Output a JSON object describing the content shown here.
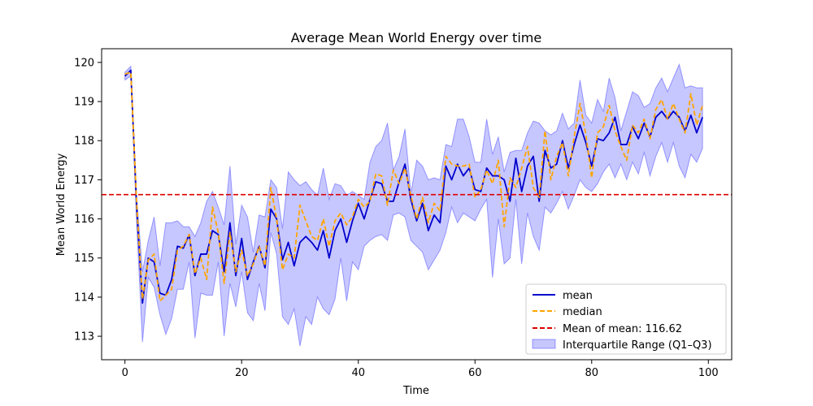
{
  "chart_data": {
    "type": "line",
    "title": "Average Mean World Energy over time",
    "xlabel": "Time",
    "ylabel": "Mean World Energy",
    "xlim": [
      -4,
      104
    ],
    "ylim": [
      112.4,
      120.35
    ],
    "xticks": [
      0,
      20,
      40,
      60,
      80,
      100
    ],
    "yticks": [
      113,
      114,
      115,
      116,
      117,
      118,
      119,
      120
    ],
    "grid": false,
    "legend_position": "lower-right",
    "x": [
      0,
      1,
      2,
      3,
      4,
      5,
      6,
      7,
      8,
      9,
      10,
      11,
      12,
      13,
      14,
      15,
      16,
      17,
      18,
      19,
      20,
      21,
      22,
      23,
      24,
      25,
      26,
      27,
      28,
      29,
      30,
      31,
      32,
      33,
      34,
      35,
      36,
      37,
      38,
      39,
      40,
      41,
      42,
      43,
      44,
      45,
      46,
      47,
      48,
      49,
      50,
      51,
      52,
      53,
      54,
      55,
      56,
      57,
      58,
      59,
      60,
      61,
      62,
      63,
      64,
      65,
      66,
      67,
      68,
      69,
      70,
      71,
      72,
      73,
      74,
      75,
      76,
      77,
      78,
      79,
      80,
      81,
      82,
      83,
      84,
      85,
      86,
      87,
      88,
      89,
      90,
      91,
      92,
      93,
      94,
      95,
      96,
      97,
      98,
      99
    ],
    "series": [
      {
        "name": "mean",
        "color": "#0000cc",
        "style": "solid",
        "values": [
          119.65,
          119.8,
          116.3,
          113.85,
          115.0,
          114.9,
          114.1,
          114.05,
          114.45,
          115.3,
          115.25,
          115.6,
          114.55,
          115.1,
          115.1,
          115.7,
          115.6,
          114.65,
          115.9,
          114.55,
          115.5,
          114.45,
          114.9,
          115.3,
          114.75,
          116.25,
          116.0,
          114.95,
          115.4,
          114.8,
          115.4,
          115.55,
          115.4,
          115.2,
          115.7,
          115.0,
          115.7,
          116.0,
          115.4,
          115.95,
          116.4,
          116.0,
          116.5,
          116.95,
          116.9,
          116.45,
          116.45,
          116.95,
          117.4,
          116.5,
          115.95,
          116.4,
          115.7,
          116.1,
          115.9,
          117.35,
          117.0,
          117.4,
          117.1,
          117.3,
          116.75,
          116.7,
          117.3,
          117.1,
          117.1,
          117.0,
          116.45,
          117.55,
          116.7,
          117.35,
          117.6,
          116.45,
          117.75,
          117.3,
          117.4,
          118.0,
          117.3,
          117.9,
          118.4,
          117.95,
          117.35,
          118.05,
          118.0,
          118.2,
          118.6,
          117.9,
          117.9,
          118.35,
          118.05,
          118.45,
          118.1,
          118.6,
          118.75,
          118.55,
          118.75,
          118.6,
          118.25,
          118.65,
          118.2,
          118.6
        ]
      },
      {
        "name": "median",
        "color": "#ffa500",
        "style": "dashed",
        "values": [
          119.7,
          119.75,
          116.4,
          113.95,
          114.95,
          115.1,
          113.9,
          114.05,
          114.2,
          115.2,
          115.3,
          115.6,
          114.6,
          115.0,
          114.45,
          116.3,
          115.65,
          114.35,
          115.65,
          114.65,
          115.2,
          114.55,
          114.85,
          115.3,
          114.8,
          116.8,
          116.0,
          114.7,
          115.1,
          115.0,
          116.35,
          115.95,
          115.55,
          115.45,
          116.0,
          115.3,
          115.95,
          116.15,
          115.85,
          116.05,
          116.5,
          116.3,
          116.45,
          117.15,
          117.1,
          116.35,
          117.25,
          116.9,
          117.3,
          116.6,
          116.0,
          116.55,
          115.9,
          116.4,
          116.2,
          117.6,
          117.4,
          117.35,
          117.35,
          117.4,
          116.55,
          116.75,
          117.25,
          116.9,
          117.5,
          115.8,
          117.05,
          116.8,
          117.3,
          117.85,
          116.8,
          116.55,
          118.25,
          117.0,
          117.6,
          117.95,
          117.1,
          118.1,
          118.95,
          118.15,
          117.05,
          118.2,
          118.35,
          118.9,
          118.25,
          117.85,
          117.5,
          118.4,
          118.2,
          118.55,
          118.05,
          118.8,
          119.05,
          118.55,
          118.95,
          118.55,
          118.2,
          119.2,
          118.4,
          118.9
        ]
      }
    ],
    "reference_line": {
      "name": "Mean of mean: 116.62",
      "value": 116.62,
      "color": "#dd0000",
      "style": "dashed"
    },
    "band": {
      "name": "Interquartile Range (Q1–Q3)",
      "color": "#0000ff",
      "opacity": 0.22,
      "q1": [
        119.55,
        119.65,
        115.9,
        112.85,
        114.5,
        114.25,
        113.55,
        113.05,
        113.45,
        114.2,
        114.2,
        114.9,
        112.95,
        114.1,
        114.05,
        114.05,
        114.9,
        113.0,
        114.35,
        113.75,
        114.65,
        113.6,
        113.4,
        114.35,
        113.65,
        115.65,
        115.1,
        113.5,
        113.3,
        113.7,
        112.75,
        113.5,
        113.3,
        114.0,
        113.7,
        113.55,
        113.95,
        115.0,
        113.9,
        114.9,
        114.7,
        115.3,
        115.45,
        115.55,
        115.6,
        115.45,
        116.1,
        116.15,
        116.05,
        115.45,
        115.3,
        115.15,
        114.7,
        114.95,
        115.2,
        115.65,
        116.3,
        115.9,
        116.15,
        116.05,
        115.95,
        116.25,
        116.5,
        114.5,
        116.0,
        114.85,
        115.0,
        116.5,
        114.85,
        116.15,
        115.55,
        115.2,
        116.3,
        116.15,
        116.4,
        116.7,
        116.25,
        116.6,
        117.0,
        116.8,
        116.7,
        116.9,
        117.2,
        117.4,
        117.05,
        117.4,
        117.0,
        117.45,
        117.15,
        117.7,
        117.1,
        117.6,
        117.95,
        117.45,
        117.95,
        117.35,
        117.05,
        117.65,
        117.45,
        117.8
      ],
      "q3": [
        119.75,
        119.9,
        116.6,
        114.65,
        115.45,
        116.05,
        114.8,
        115.9,
        115.9,
        115.95,
        115.8,
        115.8,
        115.55,
        115.9,
        116.45,
        116.7,
        116.3,
        115.85,
        117.35,
        115.35,
        116.35,
        116.05,
        115.15,
        116.1,
        116.05,
        117.0,
        116.8,
        115.75,
        117.2,
        117.0,
        116.85,
        116.95,
        116.75,
        116.6,
        117.3,
        116.5,
        116.9,
        116.85,
        116.6,
        116.7,
        116.6,
        116.5,
        117.45,
        117.85,
        118.0,
        118.45,
        117.25,
        117.6,
        118.3,
        116.65,
        117.5,
        117.35,
        117.0,
        117.05,
        117.0,
        117.9,
        117.85,
        118.55,
        118.55,
        118.1,
        117.45,
        117.45,
        118.55,
        117.65,
        118.1,
        117.2,
        117.7,
        117.75,
        117.75,
        118.2,
        118.5,
        118.45,
        118.25,
        118.15,
        118.25,
        118.7,
        118.3,
        118.45,
        119.55,
        118.65,
        118.45,
        119.05,
        118.75,
        119.6,
        119.1,
        118.25,
        118.75,
        119.25,
        119.15,
        118.85,
        118.95,
        119.35,
        119.6,
        119.25,
        119.6,
        119.95,
        119.35,
        119.4,
        119.35,
        119.35
      ]
    }
  }
}
